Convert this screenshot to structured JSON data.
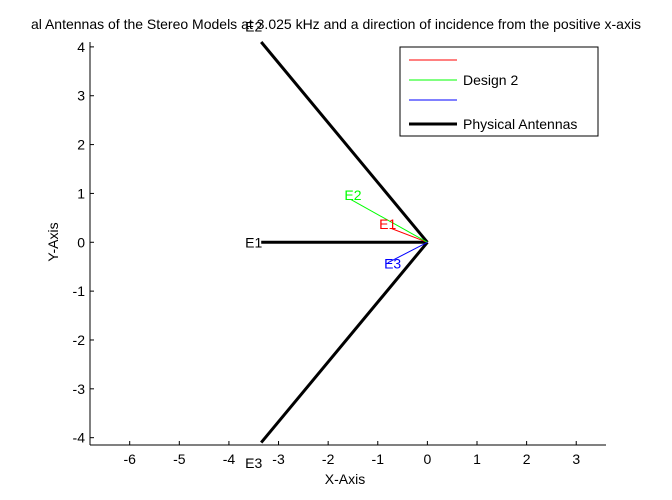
{
  "chart_data": {
    "type": "line",
    "title": "al Antennas of the Stereo Models at 3.025 kHz and a direction of incidence from the positive x-axis",
    "xlabel": "X-Axis",
    "ylabel": "Y-Axis",
    "xlim": [
      -6.8,
      3.6
    ],
    "ylim": [
      -4.15,
      4.1
    ],
    "xticks": [
      -6,
      -5,
      -4,
      -3,
      -2,
      -1,
      0,
      1,
      2,
      3
    ],
    "yticks": [
      -4,
      -3,
      -2,
      -1,
      0,
      1,
      2,
      3,
      4
    ],
    "grid": false,
    "legend_position": "top-right",
    "legend": [
      {
        "label": "",
        "color": "#ff0000",
        "line_width": 1
      },
      {
        "label": "Design 2",
        "color": "#00ff00",
        "line_width": 1
      },
      {
        "label": "",
        "color": "#0000ff",
        "line_width": 1
      },
      {
        "label": "Physical Antennas",
        "color": "#000000",
        "line_width": 3
      }
    ],
    "series": [
      {
        "color": "#000000",
        "segments": [
          {
            "x": [
              0,
              -3.35
            ],
            "y": [
              0,
              0
            ]
          },
          {
            "x": [
              0,
              -3.35
            ],
            "y": [
              0,
              4.1
            ]
          },
          {
            "x": [
              0,
              -3.35
            ],
            "y": [
              0,
              -4.1
            ]
          }
        ]
      },
      {
        "color": "#ff0000",
        "segments": [
          {
            "x": [
              0,
              -0.72
            ],
            "y": [
              0,
              0.28
            ]
          }
        ]
      },
      {
        "name": "Design 2",
        "color": "#00ff00",
        "segments": [
          {
            "x": [
              0,
              -1.55
            ],
            "y": [
              0,
              0.88
            ]
          }
        ]
      },
      {
        "color": "#0000ff",
        "segments": [
          {
            "x": [
              0,
              -0.8
            ],
            "y": [
              0,
              -0.42
            ]
          }
        ]
      }
    ],
    "annotations": [
      {
        "text": "E1",
        "x": -3.5,
        "y": 0,
        "color": "#000000"
      },
      {
        "text": "E2",
        "x": -3.5,
        "y": 4.42,
        "color": "#000000"
      },
      {
        "text": "E3",
        "x": -3.5,
        "y": -4.52,
        "color": "#000000"
      },
      {
        "text": "E2",
        "x": -1.5,
        "y": 0.97,
        "color": "#00ff00"
      },
      {
        "text": "E1",
        "x": -0.8,
        "y": 0.37,
        "color": "#ff0000"
      },
      {
        "text": "E3",
        "x": -0.7,
        "y": -0.43,
        "color": "#0000ff"
      }
    ]
  }
}
